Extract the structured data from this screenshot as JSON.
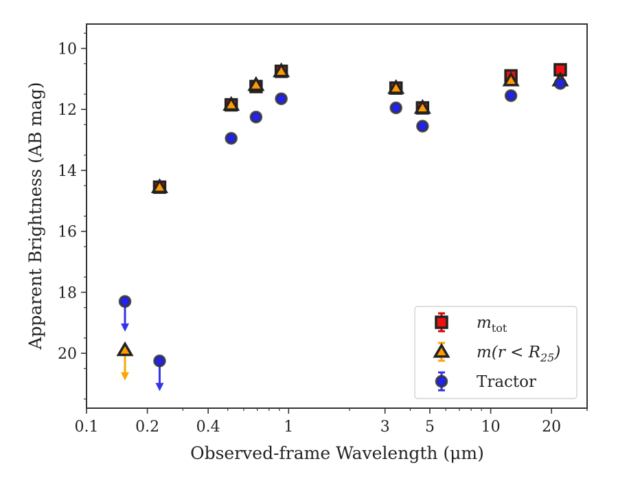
{
  "chart_data": {
    "type": "scatter",
    "xlabel": "Observed-frame Wavelength (μm)",
    "ylabel": "Apparent Brightness (AB mag)",
    "xscale": "log",
    "xlim": [
      0.1,
      30
    ],
    "ylim": [
      21.8,
      9.2
    ],
    "y_inverted": true,
    "x_tick_labels": [
      "0.1",
      "0.2",
      "0.4",
      "1",
      "3",
      "5",
      "10",
      "20"
    ],
    "x_tick_values": [
      0.1,
      0.2,
      0.4,
      1,
      3,
      5,
      10,
      20
    ],
    "y_tick_labels": [
      "10",
      "12",
      "14",
      "16",
      "18",
      "20"
    ],
    "y_tick_values": [
      10,
      12,
      14,
      16,
      18,
      20
    ],
    "grid": false,
    "legend_position": "lower-right",
    "series": [
      {
        "name": "m_tot",
        "legend_main": "m",
        "legend_sub": "tot",
        "marker": "square",
        "fill": "#ee1111",
        "errorbar_color": "#dd0000",
        "x": [
          0.23,
          0.52,
          0.69,
          0.92,
          3.4,
          4.6,
          12.6,
          22.1
        ],
        "y": [
          14.55,
          11.85,
          11.25,
          10.75,
          11.3,
          11.95,
          10.9,
          10.7
        ],
        "upper_limit": [
          false,
          false,
          false,
          false,
          false,
          false,
          false,
          false
        ]
      },
      {
        "name": "m(r < R25)",
        "legend_main": "m(r < R",
        "legend_sub": "25",
        "legend_tail": ")",
        "marker": "triangle",
        "fill": "#ff9a00",
        "errorbar_color": "#ffa500",
        "x": [
          0.155,
          0.23,
          0.52,
          0.69,
          0.92,
          3.4,
          4.6,
          12.6,
          22.1
        ],
        "y": [
          19.9,
          14.55,
          11.85,
          11.2,
          10.75,
          11.3,
          11.95,
          11.05,
          11.05
        ],
        "upper_limit": [
          true,
          false,
          false,
          false,
          false,
          false,
          false,
          false,
          false
        ]
      },
      {
        "name": "Tractor",
        "legend_main": "Tractor",
        "marker": "circle",
        "fill": "#2222ee",
        "errorbar_color": "#3333ee",
        "x": [
          0.155,
          0.23,
          0.52,
          0.69,
          0.92,
          3.4,
          4.6,
          12.6,
          22.1
        ],
        "y": [
          18.3,
          20.25,
          12.95,
          12.25,
          11.65,
          11.95,
          12.55,
          11.55,
          11.15
        ],
        "upper_limit": [
          true,
          true,
          false,
          false,
          false,
          false,
          false,
          false,
          false
        ]
      }
    ]
  }
}
